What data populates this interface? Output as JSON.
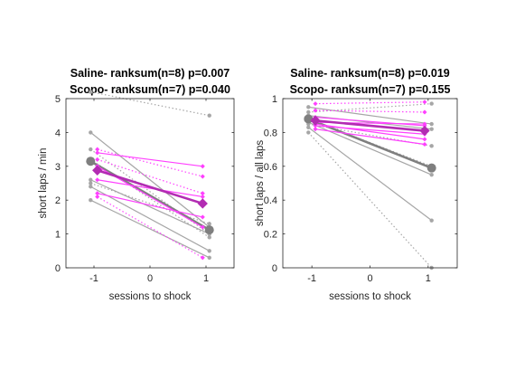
{
  "colors": {
    "saline_mean": "#7f7f7f",
    "saline_ind": "#a6a6a6",
    "scopo_mean": "#b22cb2",
    "scopo_ind": "#ff40ff"
  },
  "chart_data": [
    {
      "type": "line",
      "title_lines": [
        "Saline- ranksum(n=8) p=0.007",
        "Scopo- ranksum(n=7) p=0.040"
      ],
      "xlabel": "sessions to shock",
      "ylabel": "short laps / min",
      "xlim": [
        -1.5,
        1.5
      ],
      "ylim": [
        0,
        5
      ],
      "xticks": [
        -1,
        0,
        1
      ],
      "yticks": [
        0,
        1,
        2,
        3,
        4,
        5
      ],
      "grid": false,
      "groups": [
        {
          "group": "saline",
          "mean": [
            3.15,
            1.12
          ],
          "lines": [
            {
              "y": [
                5.2,
                4.5
              ],
              "style": "dotted"
            },
            {
              "y": [
                4.0,
                1.2
              ],
              "style": "solid"
            },
            {
              "y": [
                3.5,
                1.0
              ],
              "style": "dotted"
            },
            {
              "y": [
                3.2,
                0.9
              ],
              "style": "dotted"
            },
            {
              "y": [
                2.6,
                1.0
              ],
              "style": "solid"
            },
            {
              "y": [
                2.5,
                1.3
              ],
              "style": "dotted"
            },
            {
              "y": [
                2.4,
                0.5
              ],
              "style": "solid"
            },
            {
              "y": [
                2.0,
                0.3
              ],
              "style": "solid"
            }
          ]
        },
        {
          "group": "scopo",
          "mean": [
            2.88,
            1.9
          ],
          "lines": [
            {
              "y": [
                3.5,
                2.7
              ],
              "style": "dotted"
            },
            {
              "y": [
                3.4,
                3.0
              ],
              "style": "solid"
            },
            {
              "y": [
                3.2,
                2.2
              ],
              "style": "dotted"
            },
            {
              "y": [
                3.0,
                1.2
              ],
              "style": "solid"
            },
            {
              "y": [
                2.6,
                2.1
              ],
              "style": "solid"
            },
            {
              "y": [
                2.2,
                1.5
              ],
              "style": "solid"
            },
            {
              "y": [
                2.1,
                0.3
              ],
              "style": "dotted"
            }
          ]
        }
      ]
    },
    {
      "type": "line",
      "title_lines": [
        "Saline- ranksum(n=8) p=0.019",
        "Scopo- ranksum(n=7) p=0.155"
      ],
      "xlabel": "sessions to shock",
      "ylabel": "short laps / all laps",
      "xlim": [
        -1.5,
        1.5
      ],
      "ylim": [
        0,
        1
      ],
      "xticks": [
        -1,
        0,
        1
      ],
      "yticks": [
        0,
        0.2,
        0.4,
        0.6,
        0.8,
        1
      ],
      "grid": false,
      "groups": [
        {
          "group": "saline",
          "mean": [
            0.88,
            0.59
          ],
          "lines": [
            {
              "y": [
                0.92,
                0.97
              ],
              "style": "dotted"
            },
            {
              "y": [
                0.9,
                0.82
              ],
              "style": "solid"
            },
            {
              "y": [
                0.88,
                0.6
              ],
              "style": "dotted"
            },
            {
              "y": [
                0.86,
                0.55
              ],
              "style": "solid"
            },
            {
              "y": [
                0.85,
                0.72
              ],
              "style": "dotted"
            },
            {
              "y": [
                0.83,
                0.28
              ],
              "style": "solid"
            },
            {
              "y": [
                0.8,
                0.0
              ],
              "style": "dotted"
            },
            {
              "y": [
                0.95,
                0.85
              ],
              "style": "solid"
            }
          ]
        },
        {
          "group": "scopo",
          "mean": [
            0.87,
            0.81
          ],
          "lines": [
            {
              "y": [
                0.97,
                0.98
              ],
              "style": "dotted"
            },
            {
              "y": [
                0.93,
                0.92
              ],
              "style": "dotted"
            },
            {
              "y": [
                0.89,
                0.84
              ],
              "style": "solid"
            },
            {
              "y": [
                0.86,
                0.85
              ],
              "style": "solid"
            },
            {
              "y": [
                0.85,
                0.76
              ],
              "style": "solid"
            },
            {
              "y": [
                0.84,
                0.79
              ],
              "style": "solid"
            },
            {
              "y": [
                0.82,
                0.73
              ],
              "style": "solid"
            }
          ]
        }
      ]
    }
  ]
}
